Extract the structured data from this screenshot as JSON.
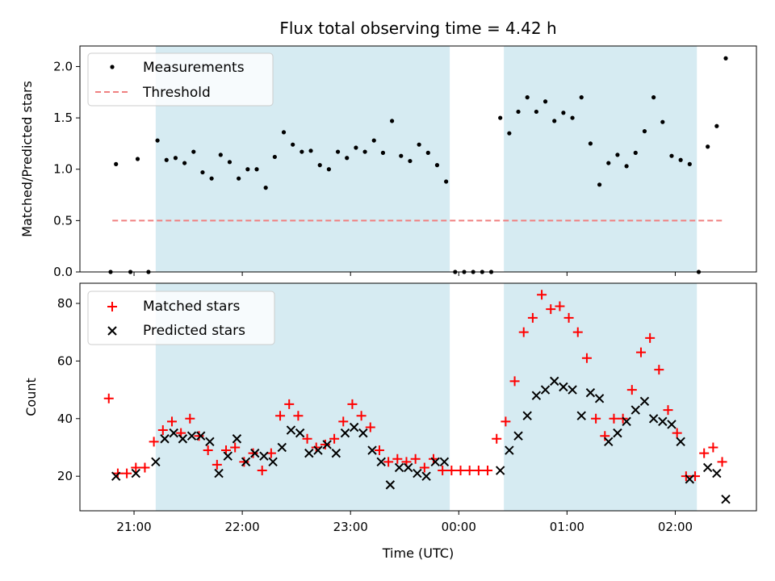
{
  "chart_data": [
    {
      "type": "scatter",
      "title": "Flux total observing time = 4.42 h",
      "xlabel": "",
      "ylabel": "Matched/Predicted stars",
      "ylim": [
        0,
        2.2
      ],
      "y_ticks": [
        "0.0",
        "0.5",
        "1.0",
        "1.5",
        "2.0"
      ],
      "y_tick_values": [
        0,
        0.5,
        1.0,
        1.5,
        2.0
      ],
      "grid": false,
      "legend_position": "top-left",
      "shaded_intervals": [
        [
          "21:12",
          "23:55"
        ],
        [
          "00:25",
          "02:12"
        ]
      ],
      "colors": {
        "shade": "#add8e6",
        "measurement": "#000000",
        "threshold": "#f08080"
      },
      "threshold": {
        "name": "Threshold",
        "value": 0.5,
        "x_range": [
          "20:48",
          "02:26"
        ]
      },
      "series": [
        {
          "name": "Measurements",
          "points": [
            [
              "20:47",
              0
            ],
            [
              "20:50",
              1.05
            ],
            [
              "20:58",
              0
            ],
            [
              "21:02",
              1.1
            ],
            [
              "21:08",
              0
            ],
            [
              "21:13",
              1.28
            ],
            [
              "21:18",
              1.09
            ],
            [
              "21:23",
              1.11
            ],
            [
              "21:28",
              1.06
            ],
            [
              "21:33",
              1.17
            ],
            [
              "21:38",
              0.97
            ],
            [
              "21:43",
              0.91
            ],
            [
              "21:48",
              1.14
            ],
            [
              "21:53",
              1.07
            ],
            [
              "21:58",
              0.91
            ],
            [
              "22:03",
              1.0
            ],
            [
              "22:08",
              1.0
            ],
            [
              "22:13",
              0.82
            ],
            [
              "22:18",
              1.12
            ],
            [
              "22:23",
              1.36
            ],
            [
              "22:28",
              1.24
            ],
            [
              "22:33",
              1.17
            ],
            [
              "22:38",
              1.18
            ],
            [
              "22:43",
              1.04
            ],
            [
              "22:48",
              1.0
            ],
            [
              "22:53",
              1.17
            ],
            [
              "22:58",
              1.11
            ],
            [
              "23:03",
              1.21
            ],
            [
              "23:08",
              1.17
            ],
            [
              "23:13",
              1.28
            ],
            [
              "23:18",
              1.16
            ],
            [
              "23:23",
              1.47
            ],
            [
              "23:28",
              1.13
            ],
            [
              "23:33",
              1.08
            ],
            [
              "23:38",
              1.24
            ],
            [
              "23:43",
              1.16
            ],
            [
              "23:48",
              1.04
            ],
            [
              "23:53",
              0.88
            ],
            [
              "23:58",
              0
            ],
            [
              "00:03",
              0
            ],
            [
              "00:08",
              0
            ],
            [
              "00:13",
              0
            ],
            [
              "00:18",
              0
            ],
            [
              "00:23",
              1.5
            ],
            [
              "00:28",
              1.35
            ],
            [
              "00:33",
              1.56
            ],
            [
              "00:38",
              1.7
            ],
            [
              "00:43",
              1.56
            ],
            [
              "00:48",
              1.66
            ],
            [
              "00:53",
              1.47
            ],
            [
              "00:58",
              1.55
            ],
            [
              "01:03",
              1.5
            ],
            [
              "01:08",
              1.7
            ],
            [
              "01:13",
              1.25
            ],
            [
              "01:18",
              0.85
            ],
            [
              "01:23",
              1.06
            ],
            [
              "01:28",
              1.14
            ],
            [
              "01:33",
              1.03
            ],
            [
              "01:38",
              1.16
            ],
            [
              "01:43",
              1.37
            ],
            [
              "01:48",
              1.7
            ],
            [
              "01:53",
              1.46
            ],
            [
              "01:58",
              1.13
            ],
            [
              "02:03",
              1.09
            ],
            [
              "02:08",
              1.05
            ],
            [
              "02:13",
              0
            ],
            [
              "02:18",
              1.22
            ],
            [
              "02:23",
              1.42
            ],
            [
              "02:28",
              2.08
            ]
          ]
        }
      ]
    },
    {
      "type": "scatter",
      "title": "",
      "xlabel": "Time (UTC)",
      "ylabel": "Count",
      "ylim": [
        8,
        87
      ],
      "y_ticks": [
        "20",
        "40",
        "60",
        "80"
      ],
      "y_tick_values": [
        20,
        40,
        60,
        80
      ],
      "x_ticks": [
        "21:00",
        "22:00",
        "23:00",
        "00:00",
        "01:00",
        "02:00"
      ],
      "x_range": [
        "20:30",
        "02:45"
      ],
      "grid": false,
      "legend_position": "top-left",
      "colors": {
        "matched": "#ff0000",
        "predicted": "#000000"
      },
      "series": [
        {
          "name": "Matched stars",
          "points": [
            [
              "20:46",
              47
            ],
            [
              "20:51",
              21
            ],
            [
              "20:56",
              21
            ],
            [
              "21:01",
              23
            ],
            [
              "21:06",
              23
            ],
            [
              "21:11",
              32
            ],
            [
              "21:16",
              36
            ],
            [
              "21:21",
              39
            ],
            [
              "21:26",
              35
            ],
            [
              "21:31",
              40
            ],
            [
              "21:36",
              34
            ],
            [
              "21:41",
              29
            ],
            [
              "21:46",
              24
            ],
            [
              "21:51",
              29
            ],
            [
              "21:56",
              30
            ],
            [
              "22:01",
              25
            ],
            [
              "22:06",
              28
            ],
            [
              "22:11",
              22
            ],
            [
              "22:16",
              28
            ],
            [
              "22:21",
              41
            ],
            [
              "22:26",
              45
            ],
            [
              "22:31",
              41
            ],
            [
              "22:36",
              33
            ],
            [
              "22:41",
              30
            ],
            [
              "22:46",
              31
            ],
            [
              "22:51",
              33
            ],
            [
              "22:56",
              39
            ],
            [
              "23:01",
              45
            ],
            [
              "23:06",
              41
            ],
            [
              "23:11",
              37
            ],
            [
              "23:16",
              29
            ],
            [
              "23:21",
              25
            ],
            [
              "23:26",
              26
            ],
            [
              "23:31",
              25
            ],
            [
              "23:36",
              26
            ],
            [
              "23:41",
              23
            ],
            [
              "23:46",
              26
            ],
            [
              "23:51",
              22
            ],
            [
              "23:56",
              22
            ],
            [
              "00:01",
              22
            ],
            [
              "00:06",
              22
            ],
            [
              "00:11",
              22
            ],
            [
              "00:16",
              22
            ],
            [
              "00:21",
              33
            ],
            [
              "00:26",
              39
            ],
            [
              "00:31",
              53
            ],
            [
              "00:36",
              70
            ],
            [
              "00:41",
              75
            ],
            [
              "00:46",
              83
            ],
            [
              "00:51",
              78
            ],
            [
              "00:56",
              79
            ],
            [
              "01:01",
              75
            ],
            [
              "01:06",
              70
            ],
            [
              "01:11",
              61
            ],
            [
              "01:16",
              40
            ],
            [
              "01:21",
              34
            ],
            [
              "01:26",
              40
            ],
            [
              "01:31",
              40
            ],
            [
              "01:36",
              50
            ],
            [
              "01:41",
              63
            ],
            [
              "01:46",
              68
            ],
            [
              "01:51",
              57
            ],
            [
              "01:56",
              43
            ],
            [
              "02:01",
              35
            ],
            [
              "02:06",
              20
            ],
            [
              "02:11",
              20
            ],
            [
              "02:16",
              28
            ],
            [
              "02:21",
              30
            ],
            [
              "02:26",
              25
            ]
          ]
        },
        {
          "name": "Predicted stars",
          "points": [
            [
              "20:50",
              20
            ],
            [
              "21:01",
              21
            ],
            [
              "21:12",
              25
            ],
            [
              "21:17",
              33
            ],
            [
              "21:22",
              35
            ],
            [
              "21:27",
              33
            ],
            [
              "21:32",
              34
            ],
            [
              "21:37",
              34
            ],
            [
              "21:42",
              32
            ],
            [
              "21:47",
              21
            ],
            [
              "21:52",
              27
            ],
            [
              "21:57",
              33
            ],
            [
              "22:02",
              25
            ],
            [
              "22:07",
              28
            ],
            [
              "22:12",
              27
            ],
            [
              "22:17",
              25
            ],
            [
              "22:22",
              30
            ],
            [
              "22:27",
              36
            ],
            [
              "22:32",
              35
            ],
            [
              "22:37",
              28
            ],
            [
              "22:42",
              29
            ],
            [
              "22:47",
              31
            ],
            [
              "22:52",
              28
            ],
            [
              "22:57",
              35
            ],
            [
              "23:02",
              37
            ],
            [
              "23:07",
              35
            ],
            [
              "23:12",
              29
            ],
            [
              "23:17",
              25
            ],
            [
              "23:22",
              17
            ],
            [
              "23:27",
              23
            ],
            [
              "23:32",
              23
            ],
            [
              "23:37",
              21
            ],
            [
              "23:42",
              20
            ],
            [
              "23:47",
              25
            ],
            [
              "23:52",
              25
            ],
            [
              "00:23",
              22
            ],
            [
              "00:28",
              29
            ],
            [
              "00:33",
              34
            ],
            [
              "00:38",
              41
            ],
            [
              "00:43",
              48
            ],
            [
              "00:48",
              50
            ],
            [
              "00:53",
              53
            ],
            [
              "00:58",
              51
            ],
            [
              "01:03",
              50
            ],
            [
              "01:08",
              41
            ],
            [
              "01:13",
              49
            ],
            [
              "01:18",
              47
            ],
            [
              "01:23",
              32
            ],
            [
              "01:28",
              35
            ],
            [
              "01:33",
              39
            ],
            [
              "01:38",
              43
            ],
            [
              "01:43",
              46
            ],
            [
              "01:48",
              40
            ],
            [
              "01:53",
              39
            ],
            [
              "01:58",
              38
            ],
            [
              "02:03",
              32
            ],
            [
              "02:08",
              19
            ],
            [
              "02:18",
              23
            ],
            [
              "02:23",
              21
            ],
            [
              "02:28",
              12
            ]
          ]
        }
      ]
    }
  ]
}
